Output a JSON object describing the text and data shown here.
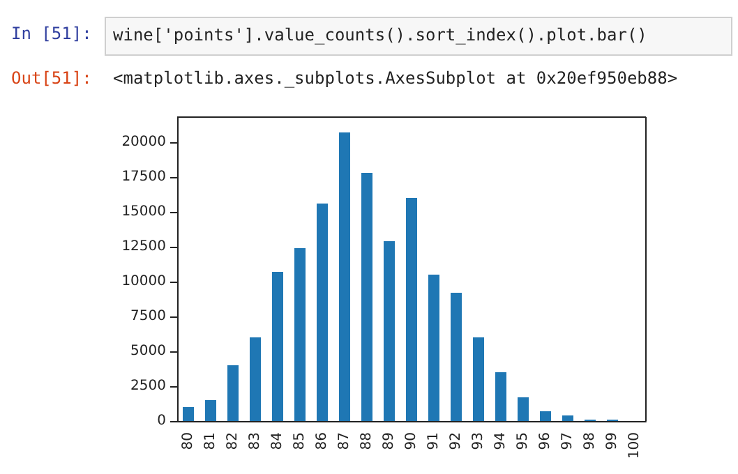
{
  "chart_data": {
    "type": "bar",
    "categories": [
      "80",
      "81",
      "82",
      "83",
      "84",
      "85",
      "86",
      "87",
      "88",
      "89",
      "90",
      "91",
      "92",
      "93",
      "94",
      "95",
      "96",
      "97",
      "98",
      "99",
      "100"
    ],
    "values": [
      1000,
      1500,
      4000,
      6000,
      10700,
      12400,
      15600,
      20700,
      17800,
      12900,
      16000,
      10500,
      9200,
      6000,
      3500,
      1700,
      700,
      400,
      100,
      100,
      0
    ],
    "color": "#1f77b4",
    "ylim": [
      0,
      21800
    ],
    "yticks": [
      0,
      2500,
      5000,
      7500,
      10000,
      12500,
      15000,
      17500,
      20000
    ],
    "grid": false,
    "annotations": [
      "In [51]:",
      "wine['points'].value_counts().sort_index().plot.bar()",
      "Out[51]:",
      "<matplotlib.axes._subplots.AxesSubplot at 0x20ef950eb88>"
    ]
  }
}
